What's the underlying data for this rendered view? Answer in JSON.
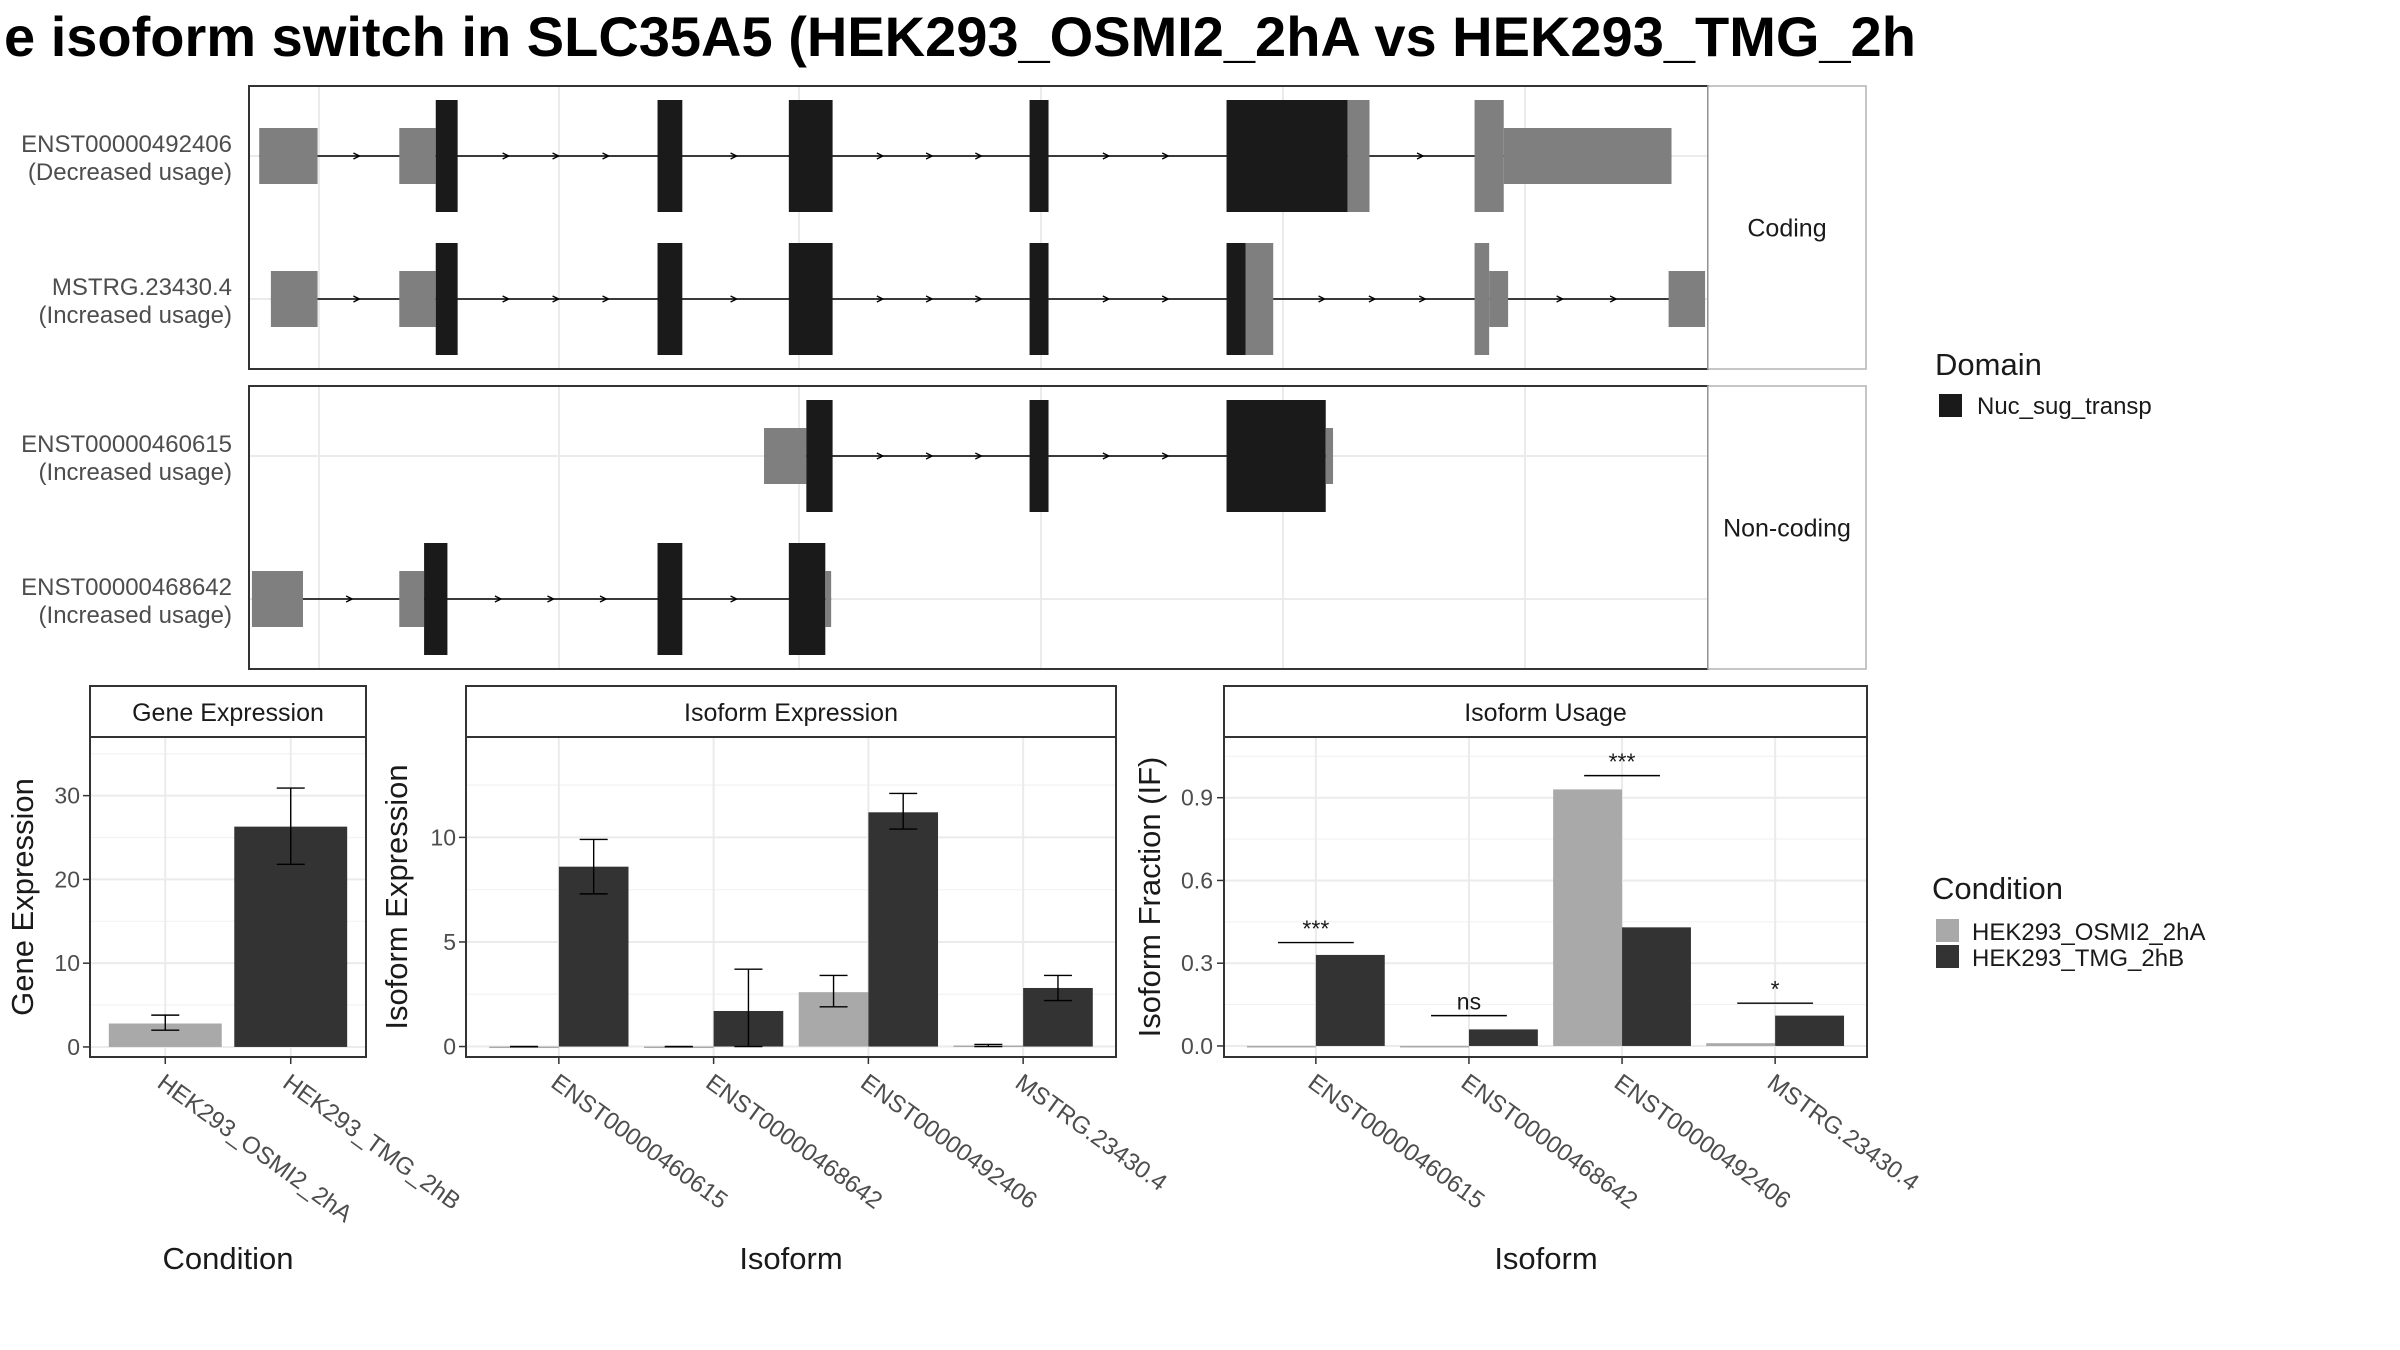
{
  "title": "e isoform switch in SLC35A5 (HEK293_OSMI2_2hA vs HEK293_TMG_2h",
  "colors": {
    "domain": "#1a1a1a",
    "exon": "#7f7f7f",
    "cond_a": "#a9a9a9",
    "cond_b": "#333333",
    "grid": "#ebebeb",
    "strip": "#ffffff"
  },
  "structure": {
    "x_range": [
      0,
      100
    ],
    "facets": [
      {
        "label": "Coding",
        "transcripts": [
          {
            "id": "ENST00000492406",
            "usage": "(Decreased usage)",
            "exons": [
              [
                0.7,
                4.7,
                "utr"
              ],
              [
                10.3,
                12.8,
                "utr"
              ],
              [
                12.8,
                14.3,
                "domain"
              ],
              [
                28.0,
                29.7,
                "domain"
              ],
              [
                37.0,
                40.0,
                "domain"
              ],
              [
                53.5,
                54.8,
                "domain"
              ],
              [
                67.0,
                75.3,
                "domain"
              ],
              [
                75.3,
                76.8,
                "cds"
              ],
              [
                84.0,
                86.0,
                "cds"
              ],
              [
                86.0,
                97.5,
                "utr"
              ]
            ]
          },
          {
            "id": "MSTRG.23430.4",
            "usage": "(Increased usage)",
            "exons": [
              [
                1.5,
                4.7,
                "utr"
              ],
              [
                10.3,
                12.8,
                "utr"
              ],
              [
                12.8,
                14.3,
                "domain"
              ],
              [
                28.0,
                29.7,
                "domain"
              ],
              [
                37.0,
                40.0,
                "domain"
              ],
              [
                53.5,
                54.8,
                "domain"
              ],
              [
                67.0,
                68.3,
                "domain"
              ],
              [
                68.3,
                70.2,
                "cds"
              ],
              [
                84.0,
                85.0,
                "cds"
              ],
              [
                85.0,
                86.3,
                "utr"
              ],
              [
                97.3,
                99.8,
                "utr"
              ]
            ]
          }
        ]
      },
      {
        "label": "Non-coding",
        "transcripts": [
          {
            "id": "ENST00000460615",
            "usage": "(Increased usage)",
            "exons": [
              [
                35.3,
                38.2,
                "utr"
              ],
              [
                38.2,
                40.0,
                "domain"
              ],
              [
                53.5,
                54.8,
                "domain"
              ],
              [
                67.0,
                73.8,
                "domain"
              ],
              [
                73.8,
                74.3,
                "utr"
              ]
            ]
          },
          {
            "id": "ENST00000468642",
            "usage": "(Increased usage)",
            "exons": [
              [
                0.2,
                3.7,
                "utr"
              ],
              [
                10.3,
                12.0,
                "utr"
              ],
              [
                12.0,
                13.6,
                "domain"
              ],
              [
                28.0,
                29.7,
                "domain"
              ],
              [
                37.0,
                39.5,
                "domain"
              ],
              [
                39.5,
                39.9,
                "utr"
              ]
            ]
          }
        ]
      }
    ]
  },
  "legend_domain": {
    "title": "Domain",
    "items": [
      "Nuc_sug_transp"
    ]
  },
  "legend_condition": {
    "title": "Condition",
    "items": [
      "HEK293_OSMI2_2hA",
      "HEK293_TMG_2hB"
    ]
  },
  "chart_data": [
    {
      "type": "bar",
      "title": "Gene Expression",
      "xlabel": "Condition",
      "ylabel": "Gene Expression",
      "ylim": [
        -1.2,
        37
      ],
      "yticks": [
        0,
        10,
        20,
        30
      ],
      "categories": [
        "HEK293_OSMI2_2hA",
        "HEK293_TMG_2hB"
      ],
      "series": [
        {
          "name": "HEK293_OSMI2_2hA",
          "values": [
            2.8,
            null
          ],
          "err_low": [
            2.0,
            null
          ],
          "err_high": [
            3.8,
            null
          ]
        },
        {
          "name": "HEK293_TMG_2hB",
          "values": [
            null,
            26.3
          ],
          "err_low": [
            null,
            21.8
          ],
          "err_high": [
            null,
            30.9
          ]
        }
      ],
      "grid": true
    },
    {
      "type": "bar",
      "title": "Isoform Expression",
      "xlabel": "Isoform",
      "ylabel": "Isoform Expression",
      "ylim": [
        -0.5,
        14.8
      ],
      "yticks": [
        0,
        5,
        10
      ],
      "categories": [
        "ENST00000460615",
        "ENST00000468642",
        "ENST00000492406",
        "MSTRG.23430.4"
      ],
      "series": [
        {
          "name": "HEK293_OSMI2_2hA",
          "values": [
            0.0,
            0.0,
            2.6,
            0.05
          ],
          "err_low": [
            0.0,
            0.0,
            1.9,
            0.0
          ],
          "err_high": [
            0.0,
            0.0,
            3.4,
            0.1
          ]
        },
        {
          "name": "HEK293_TMG_2hB",
          "values": [
            8.6,
            1.7,
            11.2,
            2.8
          ],
          "err_low": [
            7.3,
            0.0,
            10.4,
            2.2
          ],
          "err_high": [
            9.9,
            3.7,
            12.1,
            3.4
          ]
        }
      ],
      "grid": true
    },
    {
      "type": "bar",
      "title": "Isoform Usage",
      "xlabel": "Isoform",
      "ylabel": "Isoform Fraction (IF)",
      "ylim": [
        -0.04,
        1.12
      ],
      "yticks": [
        0.0,
        0.3,
        0.6,
        0.9
      ],
      "ytick_labels": [
        "0.0",
        "0.3",
        "0.6",
        "0.9"
      ],
      "categories": [
        "ENST00000460615",
        "ENST00000468642",
        "ENST00000492406",
        "MSTRG.23430.4"
      ],
      "series": [
        {
          "name": "HEK293_OSMI2_2hA",
          "values": [
            0.0,
            0.0,
            0.93,
            0.01
          ]
        },
        {
          "name": "HEK293_TMG_2hB",
          "values": [
            0.33,
            0.06,
            0.43,
            0.11
          ]
        }
      ],
      "annotations": [
        {
          "category": "ENST00000460615",
          "text": "***",
          "y": 0.375
        },
        {
          "category": "ENST00000468642",
          "text": "ns",
          "y": 0.11
        },
        {
          "category": "ENST00000492406",
          "text": "***",
          "y": 0.98
        },
        {
          "category": "MSTRG.23430.4",
          "text": "*",
          "y": 0.155
        }
      ],
      "grid": true
    }
  ]
}
